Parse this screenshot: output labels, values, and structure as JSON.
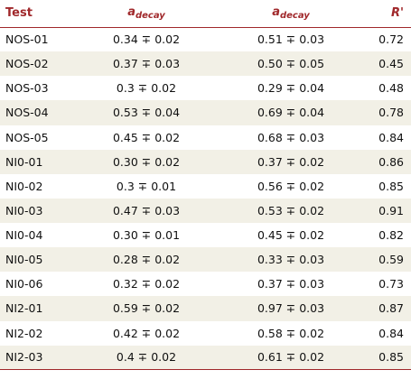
{
  "table": {
    "headers": {
      "test": "Test",
      "a1_main": "a",
      "a1_sub": "decay",
      "a2_main": "a",
      "a2_sub": "decay",
      "r": "R'"
    },
    "rows": [
      {
        "test": "NOS-01",
        "a1": "0.34 ∓ 0.02",
        "a2": "0.51 ∓ 0.03",
        "r": "0.72"
      },
      {
        "test": "NOS-02",
        "a1": "0.37 ∓ 0.03",
        "a2": "0.50 ∓ 0.05",
        "r": "0.45"
      },
      {
        "test": "NOS-03",
        "a1": "0.3 ∓ 0.02",
        "a2": "0.29 ∓ 0.04",
        "r": "0.48"
      },
      {
        "test": "NOS-04",
        "a1": "0.53 ∓ 0.04",
        "a2": "0.69 ∓ 0.04",
        "r": "0.78"
      },
      {
        "test": "NOS-05",
        "a1": "0.45 ∓ 0.02",
        "a2": "0.68 ∓ 0.03",
        "r": "0.84"
      },
      {
        "test": "NI0-01",
        "a1": "0.30 ∓ 0.02",
        "a2": "0.37 ∓ 0.02",
        "r": "0.86"
      },
      {
        "test": "NI0-02",
        "a1": "0.3 ∓ 0.01",
        "a2": "0.56 ∓ 0.02",
        "r": "0.85"
      },
      {
        "test": "NI0-03",
        "a1": "0.47 ∓ 0.03",
        "a2": "0.53 ∓ 0.02",
        "r": "0.91"
      },
      {
        "test": "NI0-04",
        "a1": "0.30 ∓ 0.01",
        "a2": "0.45 ∓ 0.02",
        "r": "0.82"
      },
      {
        "test": "NI0-05",
        "a1": "0.28 ∓ 0.02",
        "a2": "0.33 ∓ 0.03",
        "r": "0.59"
      },
      {
        "test": "NI0-06",
        "a1": "0.32 ∓ 0.02",
        "a2": "0.37 ∓ 0.03",
        "r": "0.73"
      },
      {
        "test": "NI2-01",
        "a1": "0.59 ∓ 0.02",
        "a2": "0.97 ∓ 0.03",
        "r": "0.87"
      },
      {
        "test": "NI2-02",
        "a1": "0.42 ∓ 0.02",
        "a2": "0.58 ∓ 0.02",
        "r": "0.84"
      },
      {
        "test": "NI2-03",
        "a1": "0.4 ∓ 0.02",
        "a2": "0.61 ∓ 0.02",
        "r": "0.85"
      }
    ]
  },
  "colors": {
    "header_text": "#a0282b",
    "rule": "#a0282b",
    "stripe": "#f2f0e6"
  }
}
